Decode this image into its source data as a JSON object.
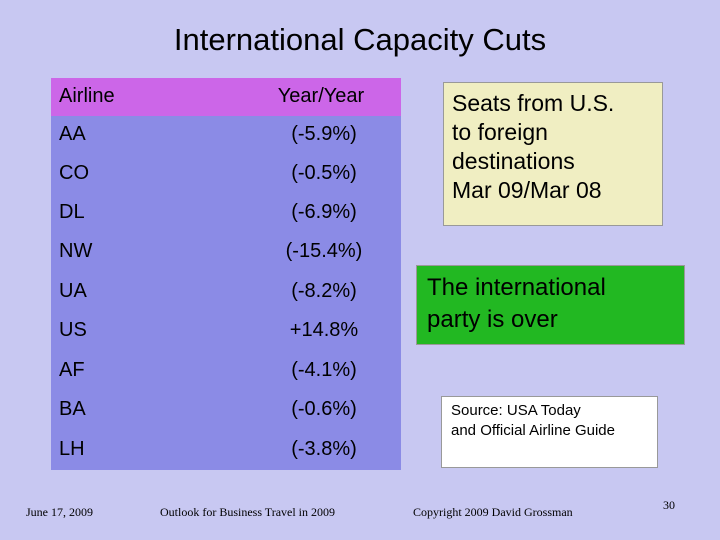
{
  "slide": {
    "title": "International Capacity Cuts",
    "table": {
      "headers": [
        "Airline",
        "Year/Year"
      ],
      "rows": [
        {
          "airline": "AA",
          "value": "(-5.9%)"
        },
        {
          "airline": "CO",
          "value": "(-0.5%)"
        },
        {
          "airline": "DL",
          "value": "(-6.9%)"
        },
        {
          "airline": "NW",
          "value": "(-15.4%)"
        },
        {
          "airline": "UA",
          "value": "(-8.2%)"
        },
        {
          "airline": "US",
          "value": "+14.8%"
        },
        {
          "airline": "AF",
          "value": "(-4.1%)"
        },
        {
          "airline": "BA",
          "value": "(-0.6%)"
        },
        {
          "airline": "LH",
          "value": "(-3.8%)"
        }
      ]
    },
    "seats_box": {
      "lines": [
        "Seats from U.S.",
        "to foreign",
        "destinations",
        "Mar 09/Mar 08"
      ]
    },
    "party_box": {
      "lines": [
        "The international",
        "party is over"
      ]
    },
    "source_box": {
      "lines": [
        "Source: USA Today",
        "and Official Airline Guide"
      ]
    },
    "footer": {
      "date": "June 17, 2009",
      "event": "Outlook for Business Travel in 2009",
      "copyright": "Copyright 2009 David Grossman",
      "page_number": "30"
    },
    "colors": {
      "background": "#c8c8f2",
      "header_row": "#cc66e8",
      "table_body": "#8b8be6",
      "seats_box": "#f0eec2",
      "party_box": "#22b822",
      "source_box": "#ffffff"
    }
  }
}
